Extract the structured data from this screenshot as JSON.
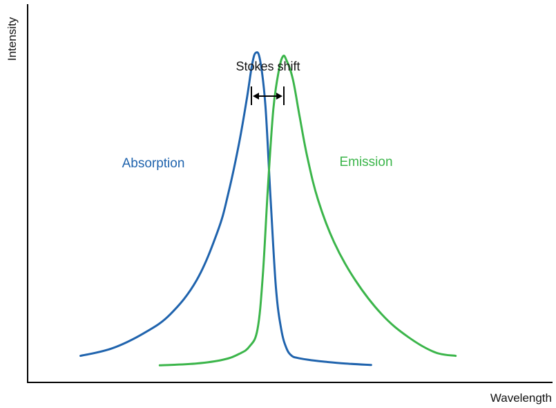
{
  "chart_data": {
    "type": "line",
    "xlabel": "Wavelength",
    "ylabel": "Intensity",
    "xlim": [
      0,
      100
    ],
    "ylim": [
      0,
      100
    ],
    "grid": false,
    "annotation": "Stokes shift",
    "series": [
      {
        "name": "Absorption",
        "color": "#1f63ad",
        "x": [
          10,
          16,
          22,
          27,
          32,
          36,
          38,
          40,
          41.5,
          42.5,
          43.2,
          44,
          45,
          46,
          47,
          48,
          49,
          50,
          51,
          53,
          56,
          60,
          65
        ],
        "y": [
          7,
          9,
          13,
          18,
          27,
          40,
          50,
          63,
          75,
          84,
          87,
          85,
          73,
          48,
          25,
          14,
          9,
          7,
          6.5,
          6,
          5.5,
          5,
          4.6
        ]
      },
      {
        "name": "Emission",
        "color": "#3bb54a",
        "x": [
          25,
          32,
          37,
          40,
          42,
          43.5,
          44.5,
          45.5,
          46.5,
          47.5,
          48.3,
          49,
          50.2,
          51.5,
          53,
          55,
          58,
          62,
          67,
          72,
          77,
          81
        ],
        "y": [
          4.5,
          5,
          6,
          7.5,
          9.5,
          14,
          28,
          52,
          72,
          82,
          86,
          85,
          80,
          70,
          59,
          48,
          37,
          27,
          18,
          12,
          8,
          7
        ]
      }
    ]
  }
}
